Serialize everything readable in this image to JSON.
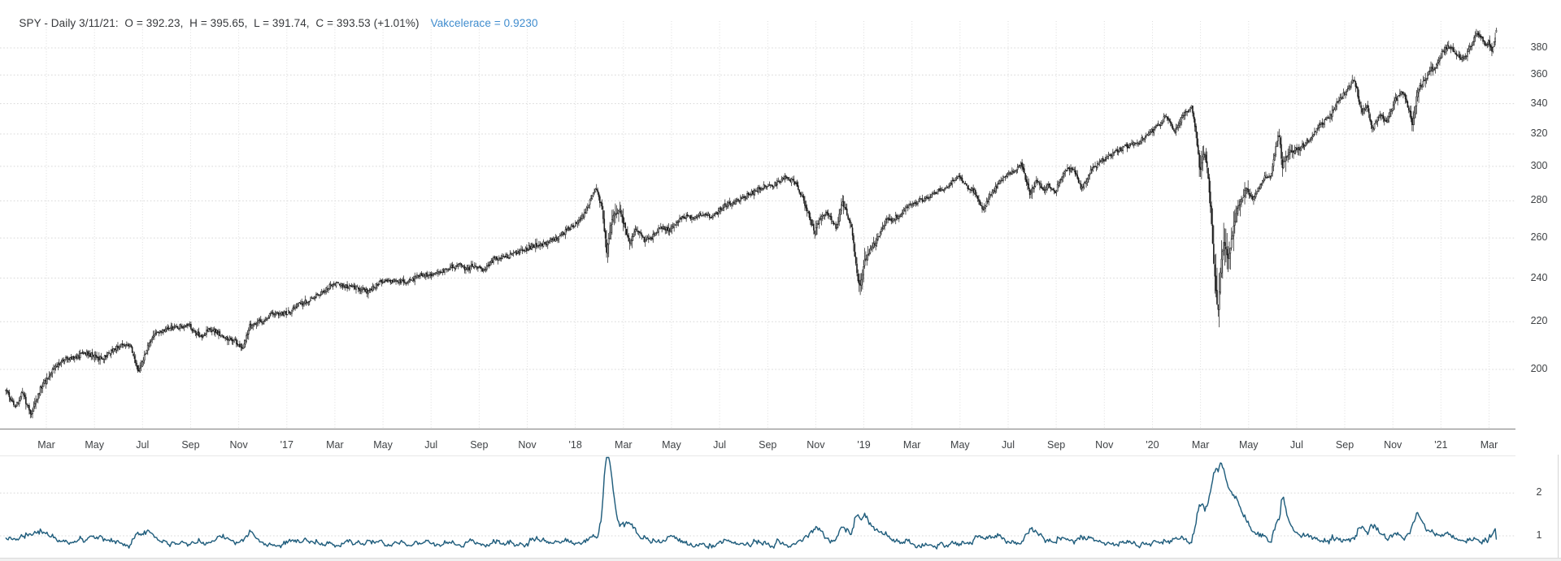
{
  "title": {
    "ohlc_text": "SPY - Daily 3/11/21:  O = 392.23,  H = 395.65,  L = 391.74,  C = 393.53 (+1.01%)",
    "indicator_text": "Vakcelerace = 0.9230"
  },
  "colors": {
    "accent_blue": "#3f8cce",
    "indicator_line": "#215e7d",
    "candle": "#161616",
    "grid": "#d8d8d8",
    "axis_line": "#8f8f8f",
    "label": "#3f4245",
    "panel_border": "#e7e7e7"
  },
  "chart_data": {
    "type": "candlestick",
    "symbol": "SPY",
    "timeframe": "Daily",
    "date": "3/11/21",
    "ohlc": {
      "open": 392.23,
      "high": 395.65,
      "low": 391.74,
      "close": 393.53,
      "change_pct": "+1.01%"
    },
    "price_panel": {
      "scale": "log",
      "y_ticks": [
        380,
        360,
        340,
        320,
        300,
        280,
        260,
        240,
        220,
        200
      ],
      "x_labels": [
        "Mar",
        "May",
        "Jul",
        "Sep",
        "Nov",
        "'17",
        "Mar",
        "May",
        "Jul",
        "Sep",
        "Nov",
        "'18",
        "Mar",
        "May",
        "Jul",
        "Sep",
        "Nov",
        "'19",
        "Mar",
        "May",
        "Jul",
        "Sep",
        "Nov",
        "'20",
        "Mar",
        "May",
        "Jul",
        "Sep",
        "Nov",
        "'21",
        "Mar"
      ],
      "close_waypoints": [
        [
          0.32,
          192.5
        ],
        [
          0.55,
          188.0
        ],
        [
          0.75,
          186.0
        ],
        [
          1.0,
          191.0
        ],
        [
          1.35,
          182.8
        ],
        [
          1.75,
          192.5
        ],
        [
          2.3,
          200.0
        ],
        [
          2.7,
          204.0
        ],
        [
          3.3,
          205.0
        ],
        [
          3.6,
          206.9
        ],
        [
          4.2,
          204.6
        ],
        [
          4.6,
          206.0
        ],
        [
          5.0,
          209.8
        ],
        [
          5.45,
          210.3
        ],
        [
          5.55,
          208.0
        ],
        [
          5.85,
          198.7
        ],
        [
          6.2,
          209.0
        ],
        [
          6.6,
          215.5
        ],
        [
          7.3,
          217.5
        ],
        [
          7.9,
          218.4
        ],
        [
          8.4,
          213.5
        ],
        [
          8.75,
          216.2
        ],
        [
          9.1,
          215.5
        ],
        [
          9.45,
          213.0
        ],
        [
          9.8,
          212.0
        ],
        [
          10.15,
          208.5
        ],
        [
          10.45,
          218.0
        ],
        [
          11.0,
          220.5
        ],
        [
          11.5,
          224.0
        ],
        [
          11.95,
          223.5
        ],
        [
          12.5,
          227.5
        ],
        [
          13.3,
          232.0
        ],
        [
          13.95,
          237.8
        ],
        [
          14.5,
          236.0
        ],
        [
          14.85,
          235.5
        ],
        [
          15.4,
          233.6
        ],
        [
          15.9,
          238.0
        ],
        [
          16.5,
          239.0
        ],
        [
          17.1,
          238.5
        ],
        [
          17.5,
          241.5
        ],
        [
          18.0,
          241.8
        ],
        [
          18.6,
          244.0
        ],
        [
          19.2,
          247.0
        ],
        [
          19.45,
          244.0
        ],
        [
          19.7,
          246.0
        ],
        [
          20.15,
          243.8
        ],
        [
          20.6,
          249.0
        ],
        [
          21.3,
          251.0
        ],
        [
          21.9,
          254.5
        ],
        [
          22.5,
          256.5
        ],
        [
          23.1,
          259.0
        ],
        [
          23.6,
          263.5
        ],
        [
          23.97,
          266.9
        ],
        [
          24.4,
          273.0
        ],
        [
          24.85,
          286.6
        ],
        [
          25.1,
          277.0
        ],
        [
          25.3,
          252.9
        ],
        [
          25.55,
          271.0
        ],
        [
          25.85,
          274.5
        ],
        [
          26.25,
          257.5
        ],
        [
          26.55,
          265.0
        ],
        [
          26.85,
          259.0
        ],
        [
          27.2,
          260.5
        ],
        [
          27.6,
          266.0
        ],
        [
          27.9,
          264.0
        ],
        [
          28.5,
          271.5
        ],
        [
          28.9,
          270.3
        ],
        [
          29.3,
          273.0
        ],
        [
          29.7,
          271.0
        ],
        [
          30.2,
          277.5
        ],
        [
          30.9,
          281.5
        ],
        [
          31.5,
          285.5
        ],
        [
          31.9,
          289.0
        ],
        [
          32.3,
          289.2
        ],
        [
          32.7,
          293.2
        ],
        [
          33.2,
          290.0
        ],
        [
          33.6,
          276.0
        ],
        [
          33.95,
          263.0
        ],
        [
          34.15,
          270.5
        ],
        [
          34.5,
          273.5
        ],
        [
          34.85,
          264.5
        ],
        [
          35.1,
          280.0
        ],
        [
          35.5,
          265.0
        ],
        [
          35.65,
          247.5
        ],
        [
          35.83,
          234.4
        ],
        [
          36.05,
          249.5
        ],
        [
          36.5,
          258.0
        ],
        [
          36.95,
          269.5
        ],
        [
          37.4,
          271.0
        ],
        [
          37.9,
          278.7
        ],
        [
          38.3,
          280.0
        ],
        [
          38.7,
          282.5
        ],
        [
          39.1,
          286.0
        ],
        [
          39.5,
          288.0
        ],
        [
          39.95,
          294.0
        ],
        [
          40.3,
          288.0
        ],
        [
          40.6,
          285.0
        ],
        [
          40.95,
          274.9
        ],
        [
          41.3,
          284.5
        ],
        [
          41.8,
          293.0
        ],
        [
          42.2,
          297.0
        ],
        [
          42.55,
          300.8
        ],
        [
          42.9,
          283.9
        ],
        [
          43.2,
          292.0
        ],
        [
          43.45,
          285.0
        ],
        [
          43.7,
          289.0
        ],
        [
          43.95,
          284.8
        ],
        [
          44.3,
          297.0
        ],
        [
          44.7,
          299.0
        ],
        [
          45.05,
          286.5
        ],
        [
          45.4,
          296.0
        ],
        [
          45.8,
          302.5
        ],
        [
          46.3,
          307.5
        ],
        [
          46.8,
          311.5
        ],
        [
          47.4,
          314.5
        ],
        [
          47.95,
          321.9
        ],
        [
          48.3,
          326.0
        ],
        [
          48.55,
          331.9
        ],
        [
          48.95,
          321.7
        ],
        [
          49.3,
          332.0
        ],
        [
          49.62,
          338.3
        ],
        [
          49.8,
          323.0
        ],
        [
          49.97,
          296.3
        ],
        [
          50.15,
          309.0
        ],
        [
          50.3,
          297.0
        ],
        [
          50.42,
          274.2
        ],
        [
          50.55,
          248.1
        ],
        [
          50.72,
          222.9
        ],
        [
          50.85,
          246.0
        ],
        [
          50.97,
          257.5
        ],
        [
          51.15,
          248.9
        ],
        [
          51.5,
          274.0
        ],
        [
          51.9,
          287.3
        ],
        [
          52.2,
          281.0
        ],
        [
          52.6,
          292.5
        ],
        [
          52.95,
          295.5
        ],
        [
          53.25,
          321.8
        ],
        [
          53.4,
          300.1
        ],
        [
          53.65,
          308.0
        ],
        [
          53.95,
          310.0
        ],
        [
          54.3,
          313.0
        ],
        [
          54.7,
          320.0
        ],
        [
          55.0,
          326.5
        ],
        [
          55.4,
          332.0
        ],
        [
          55.75,
          342.0
        ],
        [
          56.05,
          349.0
        ],
        [
          56.4,
          357.1
        ],
        [
          56.7,
          334.0
        ],
        [
          56.9,
          340.0
        ],
        [
          57.15,
          322.5
        ],
        [
          57.45,
          334.0
        ],
        [
          57.75,
          327.0
        ],
        [
          58.1,
          343.0
        ],
        [
          58.4,
          348.0
        ],
        [
          58.6,
          340.0
        ],
        [
          58.8,
          326.6
        ],
        [
          59.05,
          350.0
        ],
        [
          59.3,
          355.0
        ],
        [
          59.55,
          363.7
        ],
        [
          59.8,
          366.0
        ],
        [
          59.97,
          373.9
        ],
        [
          60.25,
          381.0
        ],
        [
          60.55,
          378.0
        ],
        [
          60.93,
          370.3
        ],
        [
          61.2,
          381.5
        ],
        [
          61.5,
          390.4
        ],
        [
          61.75,
          386.0
        ],
        [
          61.9,
          380.4
        ],
        [
          62.0,
          385.6
        ],
        [
          62.1,
          376.7
        ],
        [
          62.2,
          384.0
        ],
        [
          62.32,
          393.53
        ]
      ]
    },
    "indicator_panel": {
      "name": "Vakcelerace",
      "last_value": 0.923,
      "y_ticks": [
        2,
        1
      ],
      "baseline": 0.95,
      "spike_events": [
        [
          25.33,
          1.2,
          0.16
        ],
        [
          35.8,
          -0.25,
          0.28
        ],
        [
          50.8,
          0.25,
          0.35
        ],
        [
          53.42,
          0.2,
          0.1
        ]
      ]
    }
  }
}
